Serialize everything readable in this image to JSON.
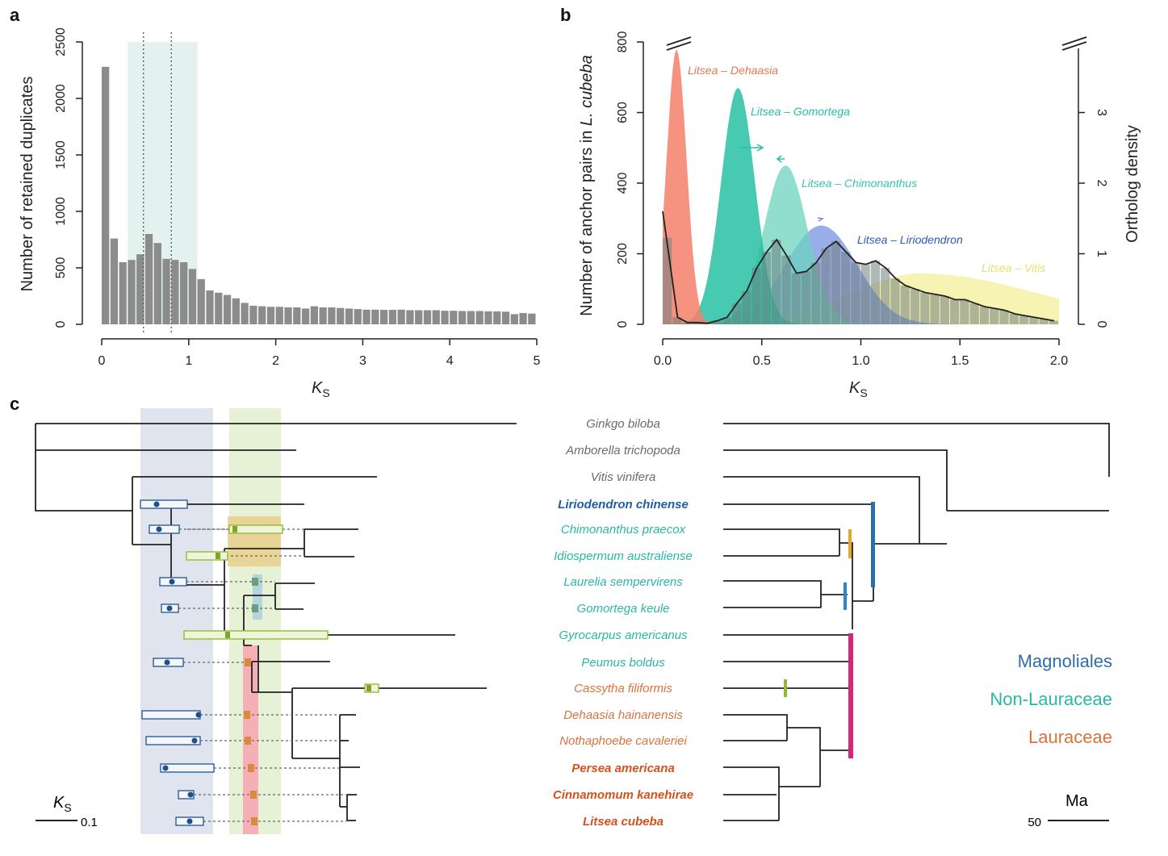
{
  "panel_labels": {
    "a": "a",
    "b": "b",
    "c": "c"
  },
  "colors": {
    "bar": "#8c8c8c",
    "dehaasia": "#f4806a",
    "gomortega": "#27bfa4",
    "chimonanthus": "#6cd3bf",
    "liriodendron": "#6e8be0",
    "vitis": "#f5f0a0",
    "anchor_bar": "#7f8c8c",
    "magnoliales": "#2c6ea9",
    "non_lauraceae": "#2ab7a9",
    "lauraceae": "#d9733b",
    "wgd_blue_band": "#dfe3ee",
    "wgd_green_band": "#e4f1d2",
    "pink_band": "#f7a9b5",
    "orange_box": "#e9c479",
    "magenta_bar": "#d8267c"
  },
  "chart_data": [
    {
      "id": "a",
      "type": "bar",
      "title": "",
      "xlabel": "K",
      "xlabel_sub": "S",
      "ylabel": "Number of retained duplicates",
      "xlim": [
        0,
        5
      ],
      "ylim": [
        0,
        2500
      ],
      "xticks": [
        "0",
        "1",
        "2",
        "3",
        "4",
        "5"
      ],
      "yticks": [
        "0",
        "500",
        "1000",
        "1500",
        "2000",
        "2500"
      ],
      "bin_width": 0.1,
      "values": [
        2280,
        760,
        550,
        570,
        620,
        800,
        720,
        580,
        570,
        550,
        490,
        400,
        300,
        280,
        260,
        230,
        190,
        165,
        160,
        155,
        155,
        150,
        150,
        140,
        160,
        150,
        150,
        145,
        140,
        135,
        130,
        130,
        128,
        128,
        130,
        125,
        125,
        125,
        125,
        120,
        120,
        118,
        118,
        118,
        115,
        115,
        112,
        90,
        100,
        95
      ],
      "shaded_region": [
        0.3,
        1.1
      ],
      "dashed_lines": [
        0.48,
        0.8
      ]
    },
    {
      "id": "b",
      "type": "area",
      "title": "",
      "xlabel": "K",
      "xlabel_sub": "S",
      "ylabel": "Number of anchor pairs in L. cubeba",
      "ylabel_plain": "Number of anchor pairs in ",
      "ylabel_italic": "L. cubeba",
      "y2label": "Ortholog density",
      "xlim": [
        0,
        2.0
      ],
      "ylim": [
        0,
        800
      ],
      "y2lim": [
        0,
        4
      ],
      "xticks": [
        "0.0",
        "0.5",
        "1.0",
        "1.5",
        "2.0"
      ],
      "yticks": [
        "0",
        "200",
        "400",
        "600",
        "800"
      ],
      "y2ticks": [
        "0",
        "1",
        "2",
        "3"
      ],
      "bin_width": 0.05,
      "anchor_bars": [
        245,
        20,
        5,
        5,
        3,
        10,
        20,
        60,
        95,
        160,
        205,
        240,
        195,
        145,
        150,
        175,
        215,
        235,
        205,
        175,
        170,
        180,
        160,
        130,
        110,
        100,
        90,
        85,
        80,
        70,
        70,
        60,
        50,
        45,
        40,
        30,
        25,
        20,
        15,
        10
      ],
      "series": [
        {
          "name": "Litsea – Dehaasia",
          "peak": 0.07,
          "sd": 0.05,
          "height": 3.9,
          "color": "#f4806a"
        },
        {
          "name": "Litsea – Gomortega",
          "peak": 0.38,
          "sd": 0.085,
          "height": 3.35,
          "color": "#27bfa4"
        },
        {
          "name": "Litsea – Chimonanthus",
          "peak": 0.62,
          "sd": 0.11,
          "height": 2.25,
          "color": "#6cd3bf"
        },
        {
          "name": "Litsea – Liriodendron",
          "peak": 0.8,
          "sd": 0.18,
          "height": 1.4,
          "color": "#6e8be0"
        },
        {
          "name": "Litsea – Vitis",
          "peak": 1.3,
          "sd": 0.45,
          "height": 0.72,
          "color": "#f5f0a0"
        }
      ],
      "labels": {
        "dehaasia": "Litsea – Dehaasia",
        "gomortega": "Litsea – Gomortega",
        "chimonanthus": "Litsea – Chimonanthus",
        "liriodendron": "Litsea – Liriodendron",
        "vitis": "Litsea – Vitis"
      }
    }
  ],
  "tree": {
    "species": [
      {
        "name": "Ginkgo biloba",
        "group": "outgroup",
        "bold": false
      },
      {
        "name": "Amborella trichopoda",
        "group": "outgroup",
        "bold": false
      },
      {
        "name": "Vitis vinifera",
        "group": "outgroup",
        "bold": false
      },
      {
        "name": "Liriodendron chinense",
        "group": "magnoliales",
        "bold": true
      },
      {
        "name": "Chimonanthus praecox",
        "group": "non_lauraceae",
        "bold": false
      },
      {
        "name": "Idiospermum australiense",
        "group": "non_lauraceae",
        "bold": false
      },
      {
        "name": "Laurelia sempervirens",
        "group": "non_lauraceae",
        "bold": false
      },
      {
        "name": "Gomortega keule",
        "group": "non_lauraceae",
        "bold": false
      },
      {
        "name": "Gyrocarpus americanus",
        "group": "non_lauraceae",
        "bold": false
      },
      {
        "name": "Peumus boldus",
        "group": "non_lauraceae",
        "bold": false
      },
      {
        "name": "Cassytha filiformis",
        "group": "lauraceae",
        "bold": false
      },
      {
        "name": "Dehaasia hainanensis",
        "group": "lauraceae",
        "bold": false
      },
      {
        "name": "Nothaphoebe cavaleriei",
        "group": "lauraceae",
        "bold": false
      },
      {
        "name": "Persea americana",
        "group": "lauraceae",
        "bold": true
      },
      {
        "name": "Cinnamomum kanehirae",
        "group": "lauraceae",
        "bold": true
      },
      {
        "name": "Litsea cubeba",
        "group": "lauraceae",
        "bold": true
      }
    ],
    "legend": [
      "Magnoliales",
      "Non-Lauraceae",
      "Lauraceae"
    ],
    "ks_scale": {
      "label": "K",
      "sub": "S",
      "value": "0.1"
    },
    "ma_scale": {
      "label": "Ma",
      "value": "50"
    }
  }
}
